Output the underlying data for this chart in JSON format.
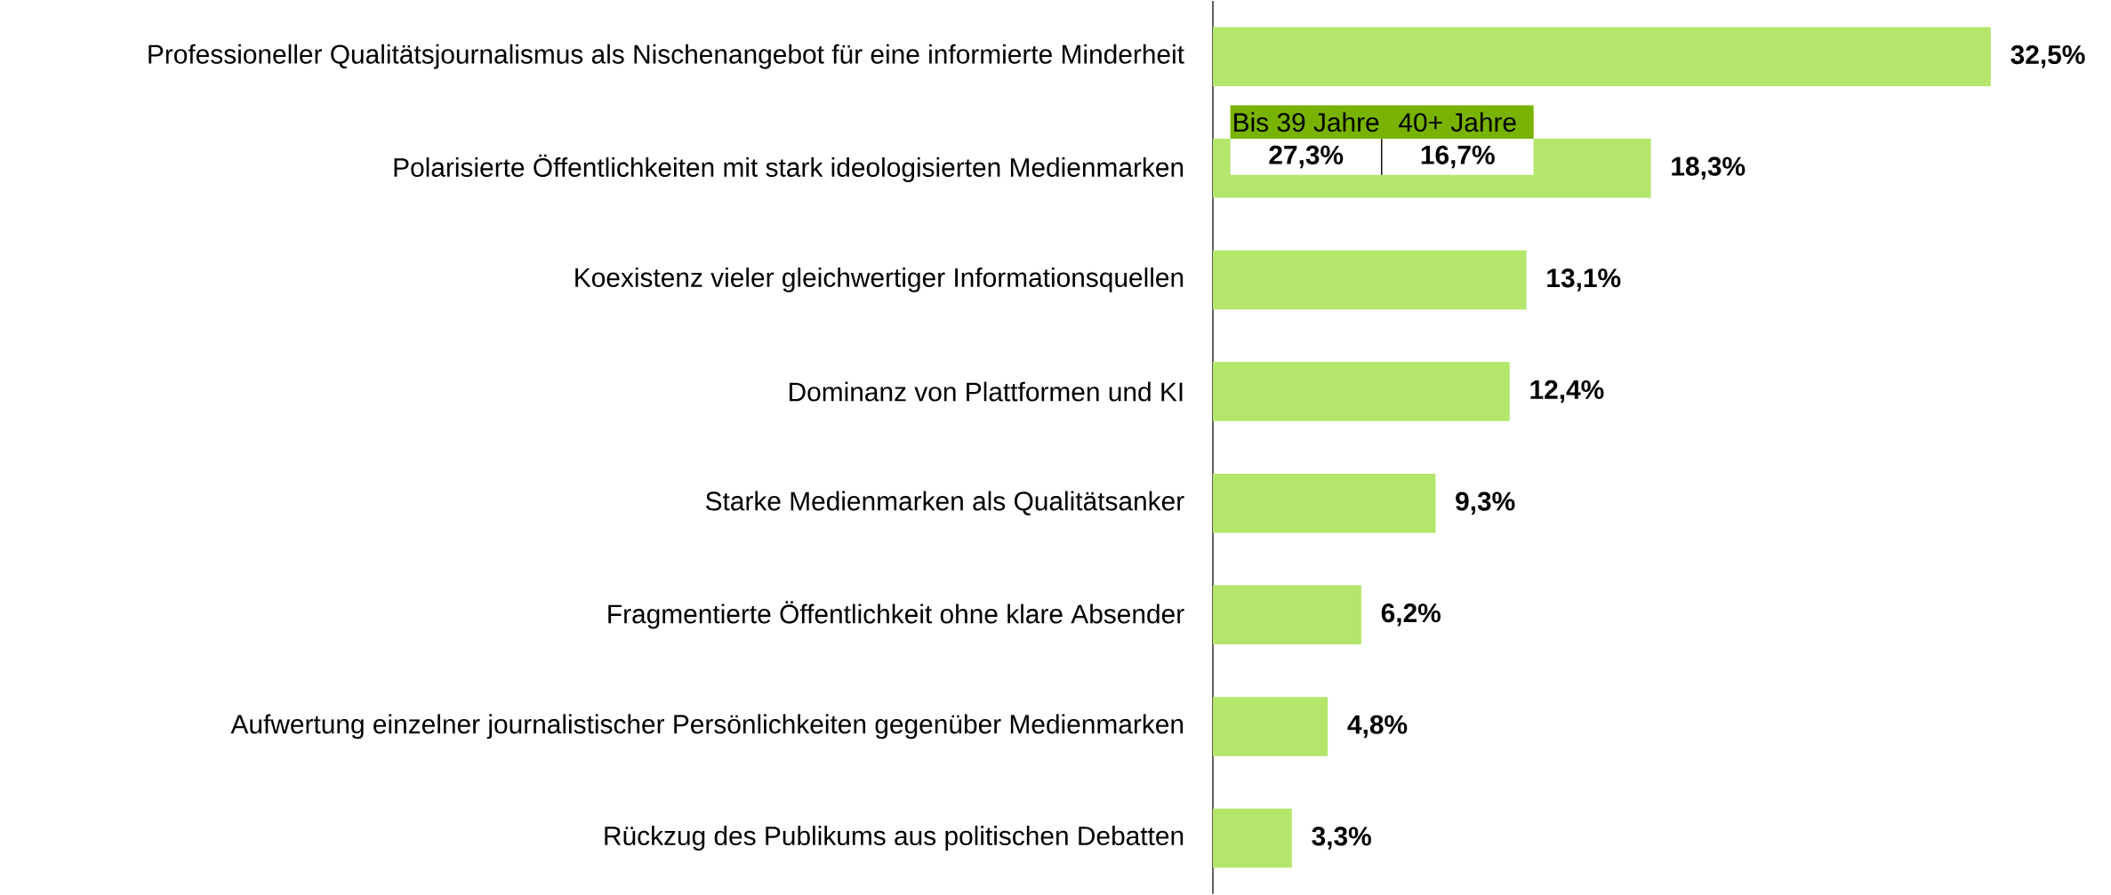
{
  "chart_data": {
    "type": "bar",
    "orientation": "horizontal",
    "color": "#b3e66b",
    "categories": [
      "Professioneller Qualitätsjournalismus als Nischenangebot für eine informierte Minderheit",
      "Polarisierte Öffentlichkeiten mit stark ideologisierten Medienmarken",
      "Koexistenz vieler gleichwertiger Informationsquellen",
      "Dominanz von Plattformen und KI",
      "Starke Medienmarken als Qualitätsanker",
      "Fragmentierte Öffentlichkeit ohne klare Absender",
      "Aufwertung einzelner journalistischer Persönlichkeiten gegenüber Medienmarken",
      "Rückzug des Publikums aus politischen Debatten"
    ],
    "values": [
      32.5,
      18.3,
      13.1,
      12.4,
      9.3,
      6.2,
      4.8,
      3.3
    ],
    "value_labels": [
      "32,5%",
      "18,3%",
      "13,1%",
      "12,4%",
      "9,3%",
      "6,2%",
      "4,8%",
      "3,3%"
    ],
    "annotations": [
      "Bis 39 Jahre",
      "40+ Jahre",
      "27,3%",
      "16,7%"
    ]
  }
}
